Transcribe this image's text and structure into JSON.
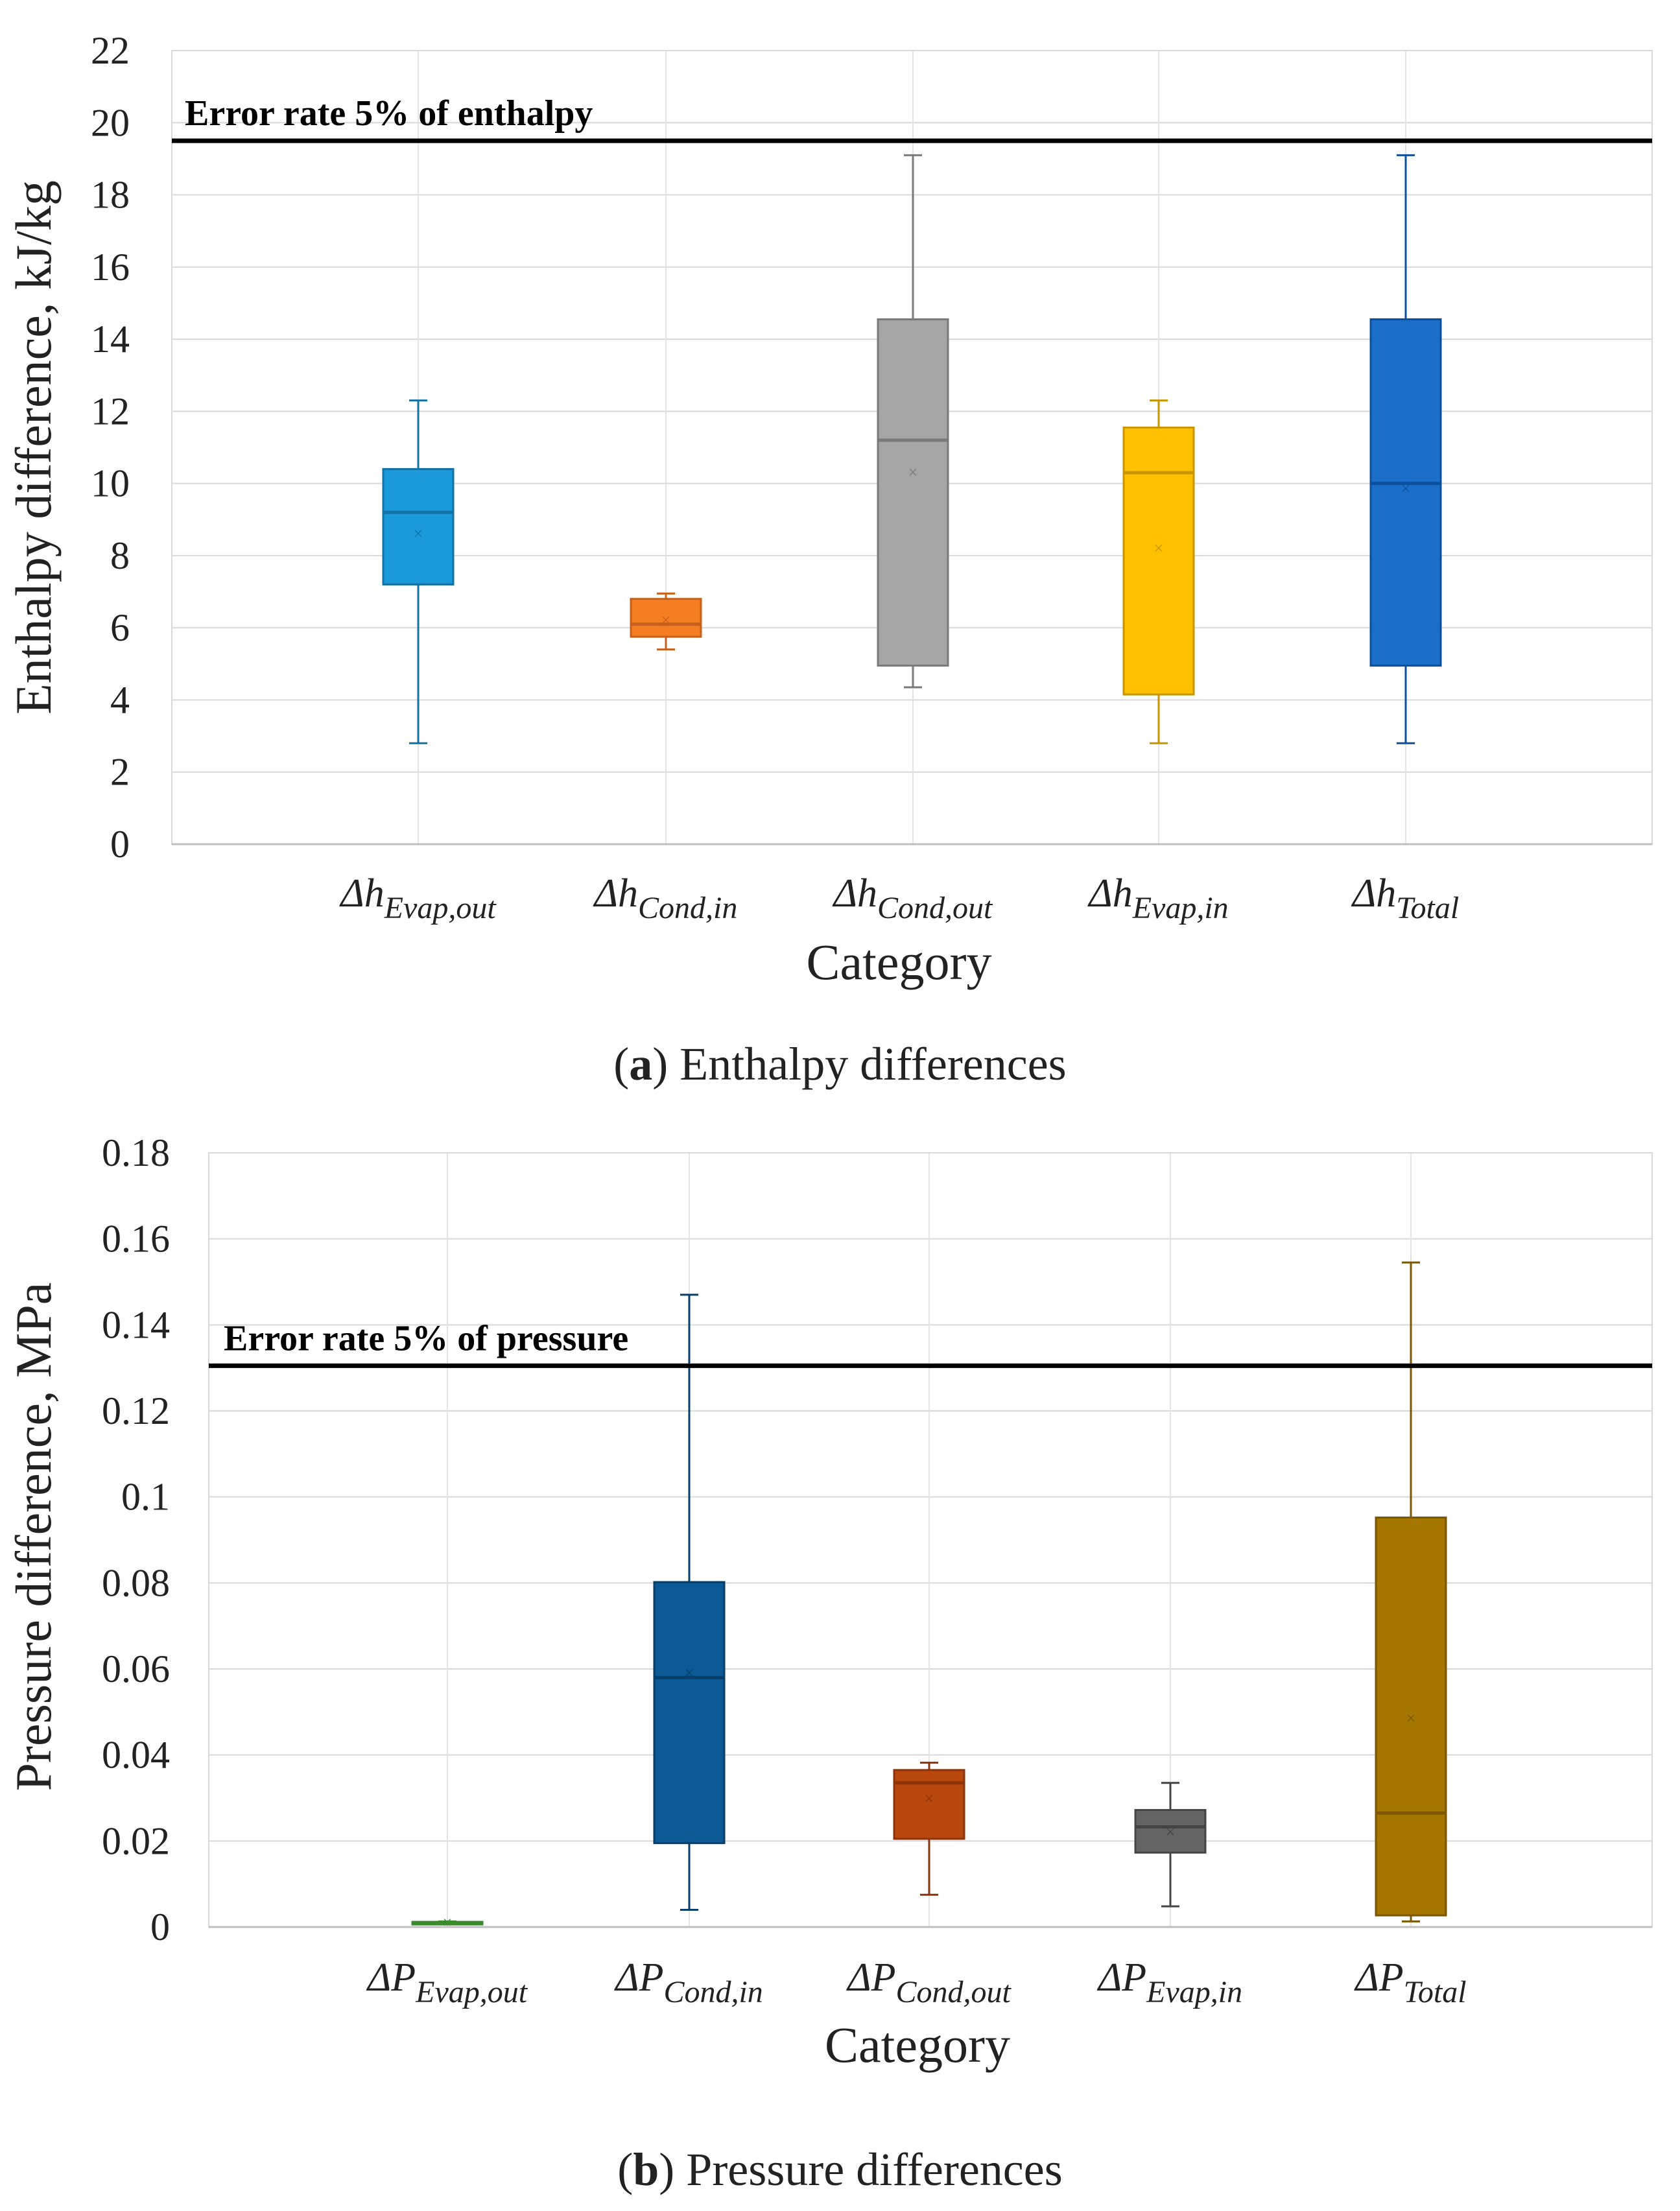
{
  "chart_data": [
    {
      "type": "box",
      "panel_letter": "a",
      "caption_rest": "Enthalpy differences",
      "ylabel": "Enthalpy difference, kJ/kg",
      "xlabel": "Category",
      "ylim": [
        0,
        22
      ],
      "yticks": [
        0,
        2,
        4,
        6,
        8,
        10,
        12,
        14,
        16,
        18,
        20,
        22
      ],
      "threshold": {
        "label": "Error rate 5% of enthalpy",
        "value": 19.5
      },
      "series": [
        {
          "name": "Δh",
          "sub": "Evap,out",
          "min": 2.8,
          "q1": 7.2,
          "median": 9.2,
          "q3": 10.4,
          "max": 12.3,
          "mean": 8.6,
          "color": "#1a9ad9",
          "line": "#1272a6"
        },
        {
          "name": "Δh",
          "sub": "Cond,in",
          "min": 5.4,
          "q1": 5.75,
          "median": 6.1,
          "q3": 6.8,
          "max": 6.95,
          "mean": 6.2,
          "color": "#f57d22",
          "line": "#c8601a"
        },
        {
          "name": "Δh",
          "sub": "Cond,out",
          "min": 4.35,
          "q1": 4.95,
          "median": 11.2,
          "q3": 14.55,
          "max": 19.1,
          "mean": 10.3,
          "color": "#a5a5a5",
          "line": "#7a7a7a"
        },
        {
          "name": "Δh",
          "sub": "Evap,in",
          "min": 2.8,
          "q1": 4.15,
          "median": 10.3,
          "q3": 11.55,
          "max": 12.3,
          "mean": 8.2,
          "color": "#ffc000",
          "line": "#c79600"
        },
        {
          "name": "Δh",
          "sub": "Total",
          "min": 2.8,
          "q1": 4.95,
          "median": 10.0,
          "q3": 14.55,
          "max": 19.1,
          "mean": 9.85,
          "color": "#1b6fc8",
          "line": "#0d4f98"
        }
      ]
    },
    {
      "type": "box",
      "panel_letter": "b",
      "caption_rest": "Pressure differences",
      "ylabel": "Pressure difference, MPa",
      "xlabel": "Category",
      "ylim": [
        0,
        0.18
      ],
      "yticks": [
        "0",
        "0.02",
        "0.04",
        "0.06",
        "0.08",
        "0.1",
        "0.12",
        "0.14",
        "0.16",
        "0.18"
      ],
      "threshold": {
        "label": "Error rate 5% of pressure",
        "value": 0.1305
      },
      "series": [
        {
          "name": "ΔP",
          "sub": "Evap,out",
          "min": 0.0008,
          "q1": 0.0009,
          "median": 0.001,
          "q3": 0.0012,
          "max": 0.0013,
          "mean": 0.001,
          "color": "#4aa33a",
          "line": "#3b8a2e"
        },
        {
          "name": "ΔP",
          "sub": "Cond,in",
          "min": 0.004,
          "q1": 0.0195,
          "median": 0.058,
          "q3": 0.0802,
          "max": 0.147,
          "mean": 0.059,
          "color": "#0b5a96",
          "line": "#083f6a"
        },
        {
          "name": "ΔP",
          "sub": "Cond,out",
          "min": 0.0075,
          "q1": 0.0205,
          "median": 0.0335,
          "q3": 0.0365,
          "max": 0.0382,
          "mean": 0.0298,
          "color": "#b8470e",
          "line": "#8c330a"
        },
        {
          "name": "ΔP",
          "sub": "Evap,in",
          "min": 0.0048,
          "q1": 0.0173,
          "median": 0.0233,
          "q3": 0.0272,
          "max": 0.0335,
          "mean": 0.022,
          "color": "#646464",
          "line": "#444444"
        },
        {
          "name": "ΔP",
          "sub": "Total",
          "min": 0.0013,
          "q1": 0.0027,
          "median": 0.0265,
          "q3": 0.0952,
          "max": 0.1545,
          "mean": 0.0485,
          "color": "#a57600",
          "line": "#7a5700"
        }
      ]
    }
  ]
}
